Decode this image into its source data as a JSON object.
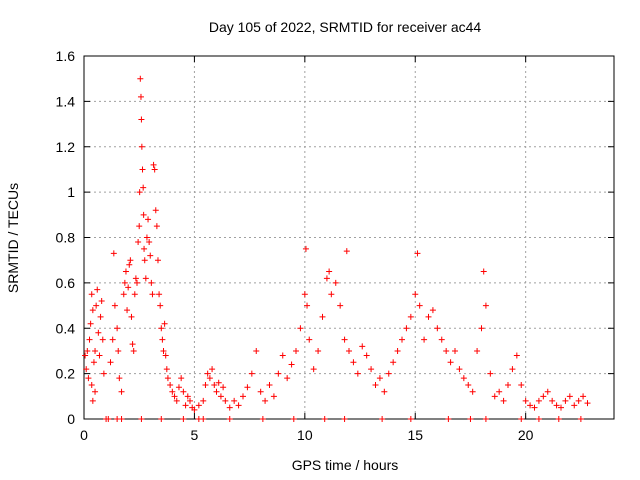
{
  "chart_data": {
    "type": "scatter",
    "title": "Day 105 of 2022, SRMTID for receiver ac44",
    "xlabel": "GPS time / hours",
    "ylabel": "SRMTID / TECUs",
    "xlim": [
      0,
      24
    ],
    "ylim": [
      0,
      1.6
    ],
    "xticks": [
      0,
      5,
      10,
      15,
      20
    ],
    "xtick_labels": [
      "0",
      "5",
      "10",
      "15",
      "20"
    ],
    "yticks": [
      0,
      0.2,
      0.4,
      0.6,
      0.8,
      1.0,
      1.2,
      1.4,
      1.6
    ],
    "ytick_labels": [
      "0",
      "0.2",
      "0.4",
      "0.6",
      "0.8",
      "1",
      "1.2",
      "1.4",
      "1.6"
    ],
    "grid": true,
    "marker": "+",
    "color": "#ff0000",
    "series": [
      {
        "name": "SRMTID",
        "points": [
          [
            0.05,
            0.28
          ],
          [
            0.1,
            0.22
          ],
          [
            0.15,
            0.3
          ],
          [
            0.2,
            0.18
          ],
          [
            0.25,
            0.35
          ],
          [
            0.3,
            0.42
          ],
          [
            0.35,
            0.55
          ],
          [
            0.4,
            0.48
          ],
          [
            0.45,
            0.25
          ],
          [
            0.5,
            0.3
          ],
          [
            0.55,
            0.5
          ],
          [
            0.6,
            0.57
          ],
          [
            0.65,
            0.38
          ],
          [
            0.7,
            0.28
          ],
          [
            0.75,
            0.45
          ],
          [
            0.8,
            0.52
          ],
          [
            0.85,
            0.35
          ],
          [
            0.9,
            0.2
          ],
          [
            0.35,
            0.15
          ],
          [
            0.4,
            0.08
          ],
          [
            0.5,
            0.12
          ],
          [
            1.2,
            0.25
          ],
          [
            1.3,
            0.35
          ],
          [
            1.35,
            0.73
          ],
          [
            1.4,
            0.5
          ],
          [
            1.5,
            0.4
          ],
          [
            1.55,
            0.3
          ],
          [
            1.6,
            0.18
          ],
          [
            1.7,
            0.12
          ],
          [
            1.8,
            0.55
          ],
          [
            1.85,
            0.6
          ],
          [
            1.9,
            0.65
          ],
          [
            1.95,
            0.48
          ],
          [
            2.0,
            0.58
          ],
          [
            2.05,
            0.68
          ],
          [
            2.1,
            0.7
          ],
          [
            2.15,
            0.45
          ],
          [
            2.2,
            0.33
          ],
          [
            2.25,
            0.3
          ],
          [
            2.3,
            0.55
          ],
          [
            2.35,
            0.62
          ],
          [
            2.4,
            0.6
          ],
          [
            2.45,
            0.78
          ],
          [
            2.5,
            0.85
          ],
          [
            2.52,
            1.0
          ],
          [
            2.55,
            1.5
          ],
          [
            2.58,
            1.42
          ],
          [
            2.6,
            1.32
          ],
          [
            2.62,
            1.2
          ],
          [
            2.65,
            1.1
          ],
          [
            2.68,
            1.02
          ],
          [
            2.7,
            0.9
          ],
          [
            2.72,
            0.75
          ],
          [
            2.75,
            0.7
          ],
          [
            2.8,
            0.62
          ],
          [
            2.85,
            0.8
          ],
          [
            2.9,
            0.88
          ],
          [
            2.95,
            0.78
          ],
          [
            3.0,
            0.72
          ],
          [
            3.05,
            0.6
          ],
          [
            3.1,
            0.55
          ],
          [
            3.15,
            1.12
          ],
          [
            3.2,
            1.1
          ],
          [
            3.25,
            0.92
          ],
          [
            3.3,
            0.85
          ],
          [
            3.35,
            0.7
          ],
          [
            3.4,
            0.55
          ],
          [
            3.45,
            0.5
          ],
          [
            3.5,
            0.4
          ],
          [
            3.55,
            0.35
          ],
          [
            3.6,
            0.3
          ],
          [
            3.65,
            0.42
          ],
          [
            3.7,
            0.28
          ],
          [
            3.75,
            0.22
          ],
          [
            3.8,
            0.18
          ],
          [
            3.9,
            0.15
          ],
          [
            4.0,
            0.12
          ],
          [
            4.1,
            0.1
          ],
          [
            4.2,
            0.08
          ],
          [
            4.3,
            0.14
          ],
          [
            4.4,
            0.18
          ],
          [
            4.5,
            0.12
          ],
          [
            4.6,
            0.06
          ],
          [
            4.7,
            0.1
          ],
          [
            4.8,
            0.08
          ],
          [
            4.9,
            0.05
          ],
          [
            5.0,
            0.04
          ],
          [
            5.2,
            0.06
          ],
          [
            5.4,
            0.08
          ],
          [
            5.5,
            0.15
          ],
          [
            5.6,
            0.2
          ],
          [
            5.7,
            0.18
          ],
          [
            5.8,
            0.22
          ],
          [
            5.9,
            0.15
          ],
          [
            6.0,
            0.12
          ],
          [
            6.1,
            0.16
          ],
          [
            6.2,
            0.1
          ],
          [
            6.3,
            0.14
          ],
          [
            6.4,
            0.08
          ],
          [
            6.6,
            0.05
          ],
          [
            6.8,
            0.08
          ],
          [
            7.0,
            0.06
          ],
          [
            7.2,
            0.1
          ],
          [
            7.4,
            0.14
          ],
          [
            7.6,
            0.2
          ],
          [
            7.8,
            0.3
          ],
          [
            8.0,
            0.12
          ],
          [
            8.2,
            0.08
          ],
          [
            8.4,
            0.15
          ],
          [
            8.6,
            0.1
          ],
          [
            8.8,
            0.2
          ],
          [
            9.0,
            0.28
          ],
          [
            9.2,
            0.18
          ],
          [
            9.4,
            0.24
          ],
          [
            9.6,
            0.3
          ],
          [
            9.8,
            0.4
          ],
          [
            10.0,
            0.55
          ],
          [
            10.05,
            0.75
          ],
          [
            10.1,
            0.5
          ],
          [
            10.2,
            0.35
          ],
          [
            10.4,
            0.22
          ],
          [
            10.6,
            0.3
          ],
          [
            10.8,
            0.45
          ],
          [
            11.0,
            0.62
          ],
          [
            11.1,
            0.65
          ],
          [
            11.2,
            0.55
          ],
          [
            11.4,
            0.6
          ],
          [
            11.6,
            0.5
          ],
          [
            11.8,
            0.35
          ],
          [
            11.9,
            0.74
          ],
          [
            12.0,
            0.3
          ],
          [
            12.2,
            0.25
          ],
          [
            12.4,
            0.2
          ],
          [
            12.6,
            0.32
          ],
          [
            12.8,
            0.28
          ],
          [
            13.0,
            0.22
          ],
          [
            13.2,
            0.15
          ],
          [
            13.4,
            0.18
          ],
          [
            13.6,
            0.12
          ],
          [
            13.8,
            0.2
          ],
          [
            14.0,
            0.25
          ],
          [
            14.2,
            0.3
          ],
          [
            14.4,
            0.35
          ],
          [
            14.6,
            0.4
          ],
          [
            14.8,
            0.45
          ],
          [
            15.0,
            0.55
          ],
          [
            15.1,
            0.73
          ],
          [
            15.2,
            0.5
          ],
          [
            15.4,
            0.35
          ],
          [
            15.6,
            0.45
          ],
          [
            15.8,
            0.48
          ],
          [
            16.0,
            0.4
          ],
          [
            16.2,
            0.35
          ],
          [
            16.4,
            0.3
          ],
          [
            16.6,
            0.25
          ],
          [
            16.8,
            0.3
          ],
          [
            17.0,
            0.22
          ],
          [
            17.2,
            0.18
          ],
          [
            17.4,
            0.15
          ],
          [
            17.6,
            0.12
          ],
          [
            17.8,
            0.3
          ],
          [
            18.0,
            0.4
          ],
          [
            18.1,
            0.65
          ],
          [
            18.2,
            0.5
          ],
          [
            18.4,
            0.2
          ],
          [
            18.6,
            0.1
          ],
          [
            18.8,
            0.12
          ],
          [
            19.0,
            0.08
          ],
          [
            19.2,
            0.15
          ],
          [
            19.4,
            0.22
          ],
          [
            19.6,
            0.28
          ],
          [
            19.8,
            0.15
          ],
          [
            20.0,
            0.08
          ],
          [
            20.2,
            0.06
          ],
          [
            20.4,
            0.05
          ],
          [
            20.6,
            0.08
          ],
          [
            20.8,
            0.1
          ],
          [
            21.0,
            0.12
          ],
          [
            21.2,
            0.08
          ],
          [
            21.4,
            0.06
          ],
          [
            21.6,
            0.05
          ],
          [
            21.8,
            0.08
          ],
          [
            22.0,
            0.1
          ],
          [
            22.2,
            0.06
          ],
          [
            22.4,
            0.08
          ],
          [
            22.6,
            0.1
          ],
          [
            22.8,
            0.07
          ],
          [
            1.0,
            0.0
          ],
          [
            1.1,
            0.0
          ],
          [
            1.5,
            0.0
          ],
          [
            1.7,
            0.0
          ],
          [
            2.6,
            0.0
          ],
          [
            3.5,
            0.0
          ],
          [
            4.5,
            0.0
          ],
          [
            5.2,
            0.0
          ],
          [
            5.4,
            0.0
          ],
          [
            6.6,
            0.0
          ],
          [
            8.1,
            0.0
          ],
          [
            9.5,
            0.0
          ],
          [
            10.9,
            0.0
          ],
          [
            11.8,
            0.0
          ],
          [
            13.5,
            0.0
          ],
          [
            14.8,
            0.0
          ],
          [
            16.5,
            0.0
          ],
          [
            17.5,
            0.0
          ],
          [
            18.2,
            0.0
          ],
          [
            19.8,
            0.0
          ],
          [
            20.6,
            0.0
          ],
          [
            21.5,
            0.0
          ],
          [
            22.5,
            0.0
          ]
        ]
      }
    ]
  }
}
